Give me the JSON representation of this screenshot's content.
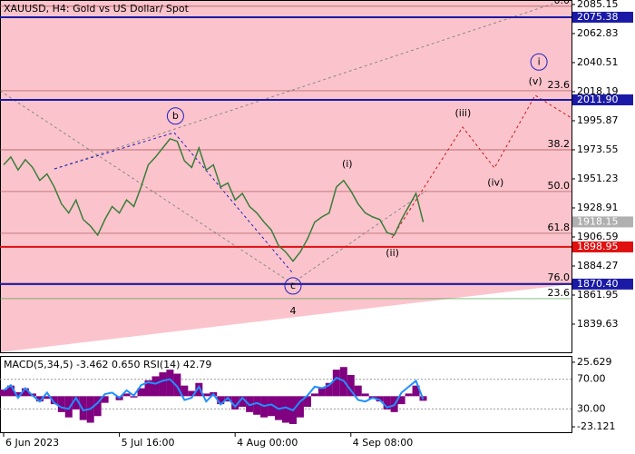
{
  "chart_data": [
    {
      "type": "line",
      "title": "XAUUSD, H4:  Gold vs US Dollar/ Spot",
      "color": "#3a7d3a",
      "values": [
        1962,
        1968,
        1958,
        1966,
        1960,
        1950,
        1955,
        1945,
        1932,
        1925,
        1935,
        1920,
        1915,
        1908,
        1920,
        1930,
        1925,
        1935,
        1930,
        1945,
        1962,
        1968,
        1975,
        1982,
        1980,
        1965,
        1960,
        1975,
        1958,
        1962,
        1945,
        1948,
        1935,
        1940,
        1930,
        1925,
        1918,
        1912,
        1900,
        1895,
        1888,
        1895,
        1905,
        1918,
        1922,
        1925,
        1945,
        1950,
        1942,
        1932,
        1925,
        1922,
        1920,
        1910,
        1908,
        1920,
        1930,
        1940,
        1918
      ],
      "xlim": [
        -0.25,
        78.5
      ],
      "xticks": [
        {
          "value": 0,
          "label": "6 Jun 2023"
        },
        {
          "value": 16,
          "label": "5 Jul 16:00"
        },
        {
          "value": 32,
          "label": "4 Aug 00:00"
        },
        {
          "value": 48,
          "label": "4 Sep 08:00"
        }
      ],
      "ylim": [
        1818.0,
        2088.6
      ],
      "yticks": [
        2085.15,
        2062.83,
        2040.51,
        2018.19,
        1995.87,
        1973.55,
        1951.23,
        1928.91,
        1906.59,
        1884.27,
        1861.95,
        1839.63
      ],
      "levels": [
        {
          "value": 2075.38,
          "color": "#1a1aa6"
        },
        {
          "value": 2011.9,
          "label": "2011.90",
          "color": "#1a1aa6"
        },
        {
          "value": 1918.15,
          "color": "#b0b0b0"
        },
        {
          "value": 1898.95,
          "color": "#e01010"
        },
        {
          "value": 1870.4,
          "label": "1870.40",
          "color": "#1a1aa6"
        }
      ],
      "fib_levels": [
        {
          "value": 2083.8,
          "label": "0.0"
        },
        {
          "value": 2018.9,
          "label": "23.6"
        },
        {
          "value": 1973.5,
          "label": "38.2"
        },
        {
          "value": 1941.5,
          "label": "50.0"
        },
        {
          "value": 1909.4,
          "label": "61.8"
        },
        {
          "value": 1871.0,
          "label": "76.0"
        },
        {
          "value": 1859.2,
          "label": "23.6",
          "color": "#3a9a3a"
        }
      ],
      "annotations": [
        {
          "text": "i",
          "x": 74,
          "y": 2041,
          "color": "#2020c0",
          "circled": true
        },
        {
          "text": "(v)",
          "x": 73.5,
          "y": 2026,
          "color": "#c81818"
        },
        {
          "text": "(iii)",
          "x": 63.5,
          "y": 2001.5,
          "color": "#c81818"
        },
        {
          "text": "(iv)",
          "x": 68,
          "y": 1948,
          "color": "#c81818"
        },
        {
          "text": "(i)",
          "x": 47.5,
          "y": 1962.5,
          "color": "#c81818"
        },
        {
          "text": "(ii)",
          "x": 53.75,
          "y": 1894,
          "color": "#c81818"
        },
        {
          "text": "b",
          "x": 23.75,
          "y": 1999.5,
          "color": "#2020c0",
          "circled": true
        },
        {
          "text": "c",
          "x": 40,
          "y": 1869,
          "color": "#2020c0",
          "circled": true
        },
        {
          "text": "4",
          "x": 40,
          "y": 1849.5,
          "color": "#a04040"
        }
      ]
    },
    {
      "type": "bar",
      "title": "MACD(5,34,5) -3.462 0.650 RSI(14) 42.79",
      "series": [
        {
          "color": "#800080",
          "values": [
            5,
            8,
            3,
            6,
            2,
            -4,
            -2,
            -6,
            -12,
            -16,
            -10,
            -18,
            -20,
            -15,
            -5,
            0,
            -3,
            2,
            -1,
            6,
            12,
            15,
            18,
            20,
            17,
            8,
            4,
            10,
            2,
            3,
            -6,
            -4,
            -10,
            -8,
            -12,
            -14,
            -16,
            -15,
            -18,
            -20,
            -21,
            -16,
            -8,
            2,
            6,
            10,
            20,
            22,
            16,
            8,
            2,
            -2,
            -4,
            -10,
            -12,
            -6,
            2,
            8,
            -3.462
          ]
        },
        {
          "color": "#1e90ff",
          "axis": "y2",
          "values": [
            55,
            62,
            45,
            58,
            48,
            40,
            52,
            38,
            32,
            30,
            45,
            28,
            30,
            38,
            50,
            52,
            45,
            55,
            48,
            62,
            66,
            64,
            68,
            70,
            60,
            42,
            45,
            60,
            40,
            50,
            36,
            45,
            33,
            45,
            35,
            38,
            34,
            36,
            30,
            32,
            28,
            40,
            48,
            60,
            58,
            62,
            72,
            68,
            55,
            42,
            40,
            45,
            42,
            32,
            35,
            52,
            60,
            68,
            42.79
          ]
        }
      ],
      "xlim": [
        -0.25,
        78.5
      ],
      "ylim": [
        -27.18,
        29.69
      ],
      "yticks": [
        25.629,
        -23.121
      ],
      "y2lim": [
        -1.5,
        100.3
      ],
      "y2ticks": [
        {
          "value": 70,
          "label": "70.00"
        },
        {
          "value": 30,
          "label": "30.00"
        }
      ]
    }
  ]
}
